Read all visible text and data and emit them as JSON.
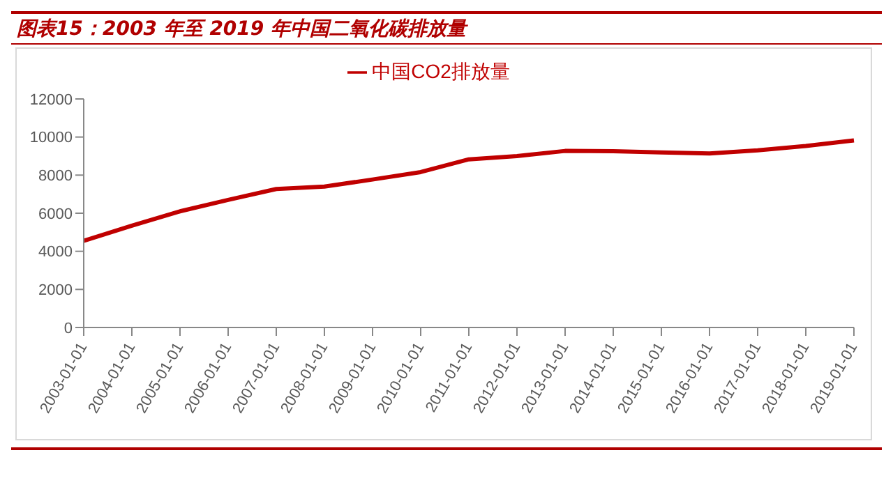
{
  "chart_data": {
    "type": "line",
    "title": "图表15：2003 年至 2019 年中国二氧化碳排放量",
    "categories": [
      "2003-01-01",
      "2004-01-01",
      "2005-01-01",
      "2006-01-01",
      "2007-01-01",
      "2008-01-01",
      "2009-01-01",
      "2010-01-01",
      "2011-01-01",
      "2012-01-01",
      "2013-01-01",
      "2014-01-01",
      "2015-01-01",
      "2016-01-01",
      "2017-01-01",
      "2018-01-01",
      "2019-01-01"
    ],
    "series": [
      {
        "name": "中国CO2排放量",
        "color": "#c00000",
        "values": [
          4550,
          5350,
          6100,
          6700,
          7270,
          7400,
          7770,
          8160,
          8830,
          9000,
          9270,
          9260,
          9190,
          9140,
          9300,
          9530,
          9820
        ]
      }
    ],
    "ylim": [
      0,
      12000
    ],
    "yticks": [
      0,
      2000,
      4000,
      6000,
      8000,
      10000,
      12000
    ],
    "grid": false,
    "legend": "top",
    "marker": "none",
    "line_style": "solid"
  }
}
